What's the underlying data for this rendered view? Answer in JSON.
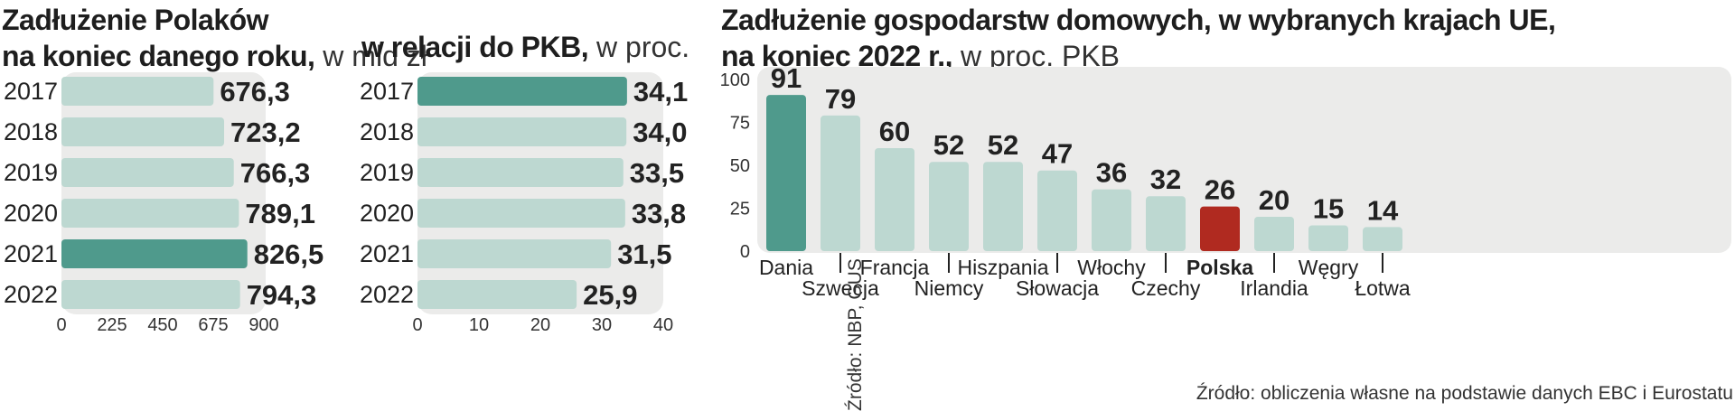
{
  "panel1": {
    "title_bold_1": "Zadłużenie Polaków",
    "title_bold_2": "na koniec danego roku,",
    "title_light": " w mld zł"
  },
  "panel2": {
    "title_bold": "w relacji do PKB,",
    "title_light": " w proc."
  },
  "panel3": {
    "title_bold_1": "Zadłużenie gospodarstw domowych, w wybranych krajach UE,",
    "title_bold_2": "na koniec 2022 r.,",
    "title_light": " w proc. PKB"
  },
  "source_vertical": "Źródło: NBP, GUS",
  "source_bottom": "Źródło: obliczenia własne na podstawie danych EBC i Eurostatu",
  "colors": {
    "bar": "#bdd8d1",
    "highlight": "#4f9a8c",
    "poland": "#b02a20",
    "panel_bg": "#ebebea"
  },
  "chart_data": [
    {
      "type": "bar",
      "orientation": "horizontal",
      "categories": [
        "2017",
        "2018",
        "2019",
        "2020",
        "2021",
        "2022"
      ],
      "values": [
        676.3,
        723.2,
        766.3,
        789.1,
        826.5,
        794.3
      ],
      "value_labels": [
        "676,3",
        "723,2",
        "766,3",
        "789,1",
        "826,5",
        "794,3"
      ],
      "highlight_index": 4,
      "xlim": [
        0,
        900
      ],
      "xticks": [
        0,
        225,
        450,
        675,
        900
      ]
    },
    {
      "type": "bar",
      "orientation": "horizontal",
      "categories": [
        "2017",
        "2018",
        "2019",
        "2020",
        "2021",
        "2022"
      ],
      "values": [
        34.1,
        34.0,
        33.5,
        33.8,
        31.5,
        25.9
      ],
      "value_labels": [
        "34,1",
        "34,0",
        "33,5",
        "33,8",
        "31,5",
        "25,9"
      ],
      "highlight_index": 0,
      "xlim": [
        0,
        40
      ],
      "xticks": [
        0,
        10,
        20,
        30,
        40
      ]
    },
    {
      "type": "bar",
      "orientation": "vertical",
      "categories": [
        "Dania",
        "Szwecja",
        "Francja",
        "Niemcy",
        "Hiszpania",
        "Słowacja",
        "Włochy",
        "Czechy",
        "Polska",
        "Irlandia",
        "Węgry",
        "Łotwa"
      ],
      "values": [
        91,
        79,
        60,
        52,
        52,
        47,
        36,
        32,
        26,
        20,
        15,
        14
      ],
      "highlight_index": 0,
      "poland_index": 8,
      "ylim": [
        0,
        100
      ],
      "yticks": [
        0,
        25,
        50,
        75,
        100
      ]
    }
  ]
}
